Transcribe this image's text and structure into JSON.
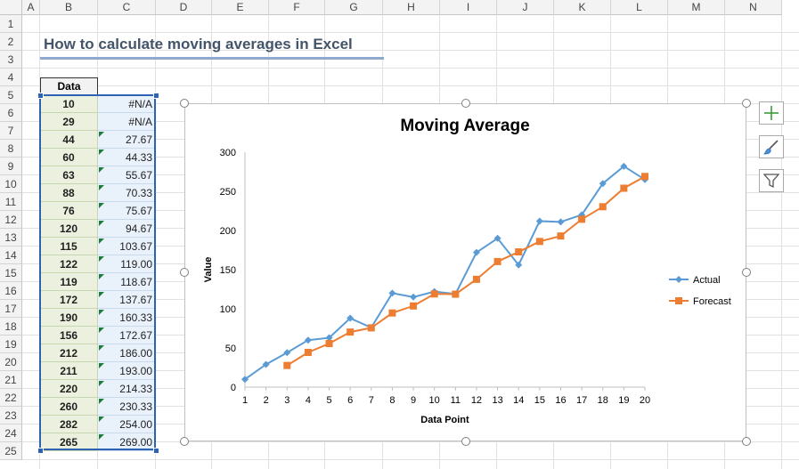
{
  "sheet": {
    "columns": [
      "A",
      "B",
      "C",
      "D",
      "E",
      "F",
      "G",
      "H",
      "I",
      "J",
      "K",
      "L",
      "M",
      "N"
    ],
    "rows": [
      "1",
      "2",
      "3",
      "4",
      "5",
      "6",
      "7",
      "8",
      "9",
      "10",
      "11",
      "12",
      "13",
      "14",
      "15",
      "16",
      "17",
      "18",
      "19",
      "20",
      "21",
      "22",
      "23",
      "24",
      "25"
    ],
    "title": "How to calculate moving averages in Excel",
    "data_header": "Data",
    "data_values": [
      "10",
      "29",
      "44",
      "60",
      "63",
      "88",
      "76",
      "120",
      "115",
      "122",
      "119",
      "172",
      "190",
      "156",
      "212",
      "211",
      "220",
      "260",
      "282",
      "265"
    ],
    "avg_values": [
      "#N/A",
      "#N/A",
      "27.67",
      "44.33",
      "55.67",
      "70.33",
      "75.67",
      "94.67",
      "103.67",
      "119.00",
      "118.67",
      "137.67",
      "160.33",
      "172.67",
      "186.00",
      "193.00",
      "214.33",
      "230.33",
      "254.00",
      "269.00"
    ]
  },
  "chart_data": {
    "type": "line",
    "title": "Moving Average",
    "xlabel": "Data Point",
    "ylabel": "Value",
    "x": [
      1,
      2,
      3,
      4,
      5,
      6,
      7,
      8,
      9,
      10,
      11,
      12,
      13,
      14,
      15,
      16,
      17,
      18,
      19,
      20
    ],
    "ylim": [
      0,
      300
    ],
    "yticks": [
      0,
      50,
      100,
      150,
      200,
      250,
      300
    ],
    "grid": false,
    "legend_position": "right",
    "series": [
      {
        "name": "Actual",
        "color": "#5b9bd5",
        "marker": "diamond",
        "values": [
          10,
          29,
          44,
          60,
          63,
          88,
          76,
          120,
          115,
          122,
          119,
          172,
          190,
          156,
          212,
          211,
          220,
          260,
          282,
          265
        ]
      },
      {
        "name": "Forecast",
        "color": "#ed7d31",
        "marker": "square",
        "values": [
          null,
          null,
          27.67,
          44.33,
          55.67,
          70.33,
          75.67,
          94.67,
          103.67,
          119.0,
          118.67,
          137.67,
          160.33,
          172.67,
          186.0,
          193.0,
          214.33,
          230.33,
          254.0,
          269.0
        ]
      }
    ]
  },
  "side_buttons": [
    {
      "name": "chart-elements-button",
      "icon": "plus-icon"
    },
    {
      "name": "chart-styles-button",
      "icon": "brush-icon"
    },
    {
      "name": "chart-filters-button",
      "icon": "funnel-icon"
    }
  ]
}
